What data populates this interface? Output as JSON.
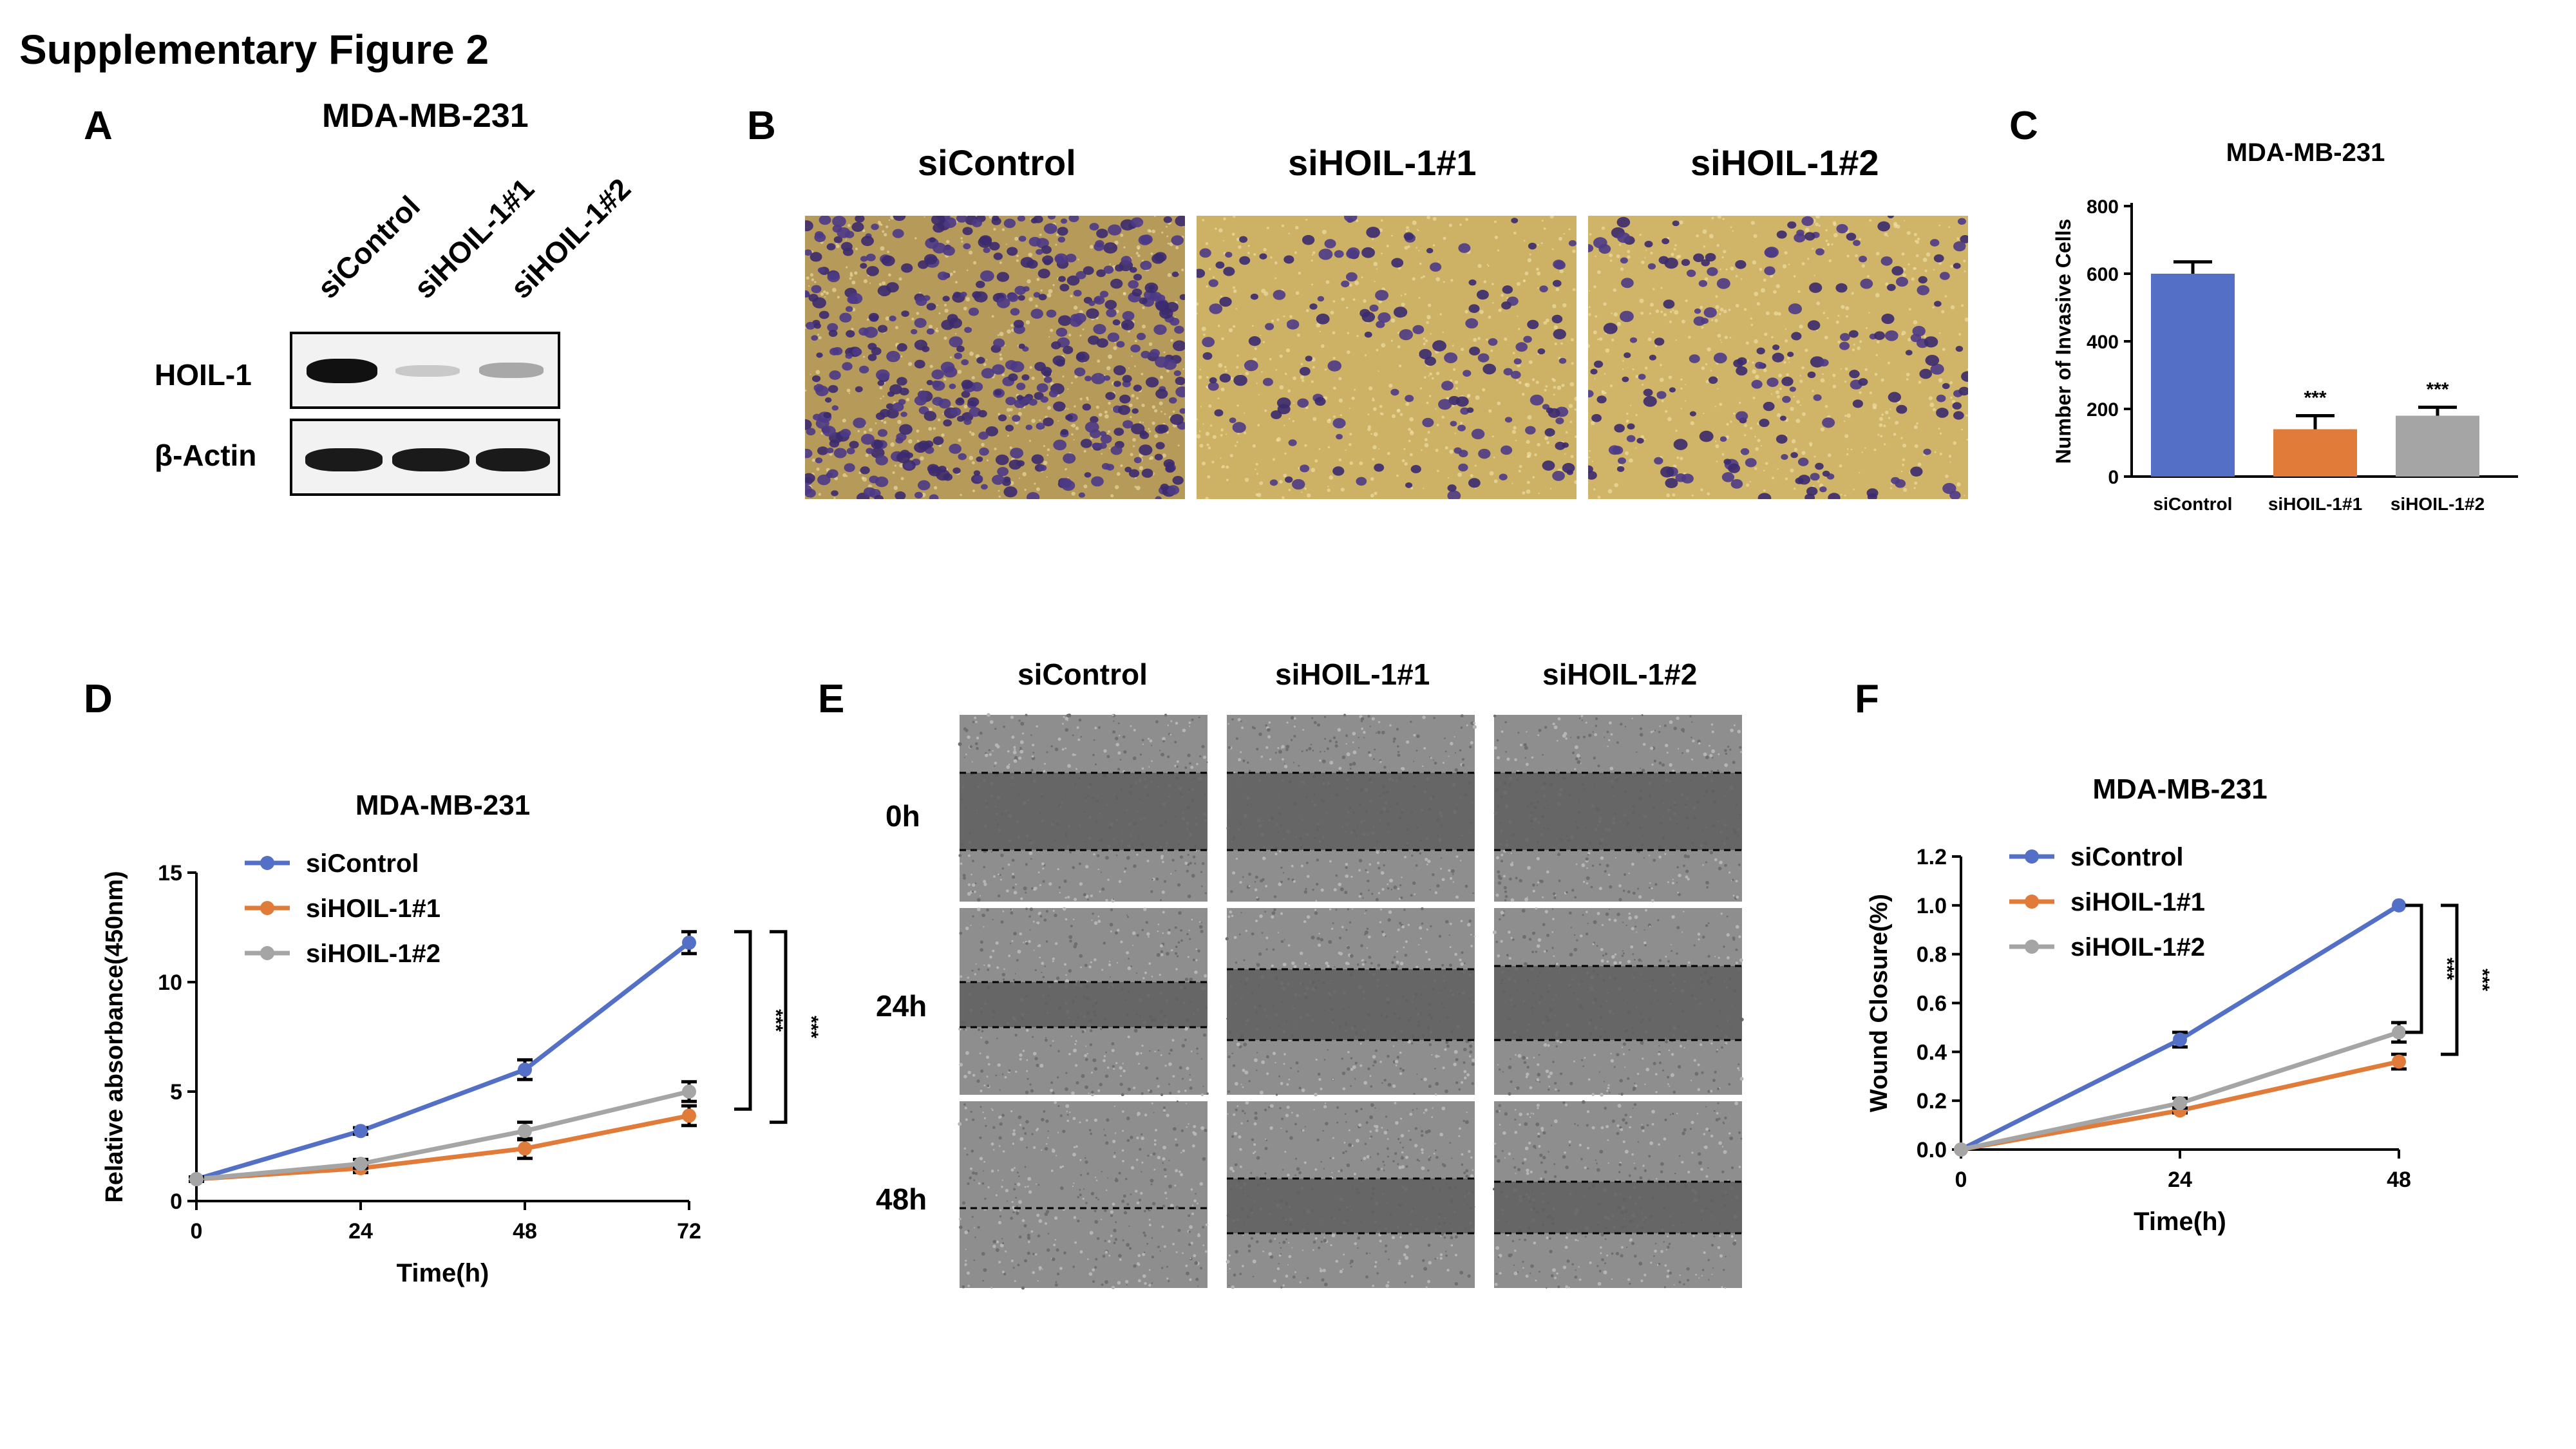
{
  "figure_title": "Supplementary Figure 2",
  "panels": {
    "A": {
      "letter": "A",
      "cell_line": "MDA-MB-231",
      "lanes": [
        "siControl",
        "siHOIL-1#1",
        "siHOIL-1#2"
      ],
      "rows": [
        "HOIL-1",
        "β-Actin"
      ]
    },
    "B": {
      "letter": "B",
      "columns": [
        "siControl",
        "siHOIL-1#1",
        "siHOIL-1#2"
      ]
    },
    "C": {
      "letter": "C"
    },
    "D": {
      "letter": "D"
    },
    "E": {
      "letter": "E",
      "columns": [
        "siControl",
        "siHOIL-1#1",
        "siHOIL-1#2"
      ],
      "rows": [
        "0h",
        "24h",
        "48h"
      ]
    },
    "F": {
      "letter": "F"
    }
  },
  "chart_data": [
    {
      "id": "C",
      "type": "bar",
      "title": "MDA-MB-231",
      "ylabel": "Number of Invasive Cells",
      "xlabel": "",
      "categories": [
        "siControl",
        "siHOIL-1#1",
        "siHOIL-1#2"
      ],
      "values": [
        600,
        140,
        180
      ],
      "errors": [
        35,
        40,
        25
      ],
      "colors": [
        "#5470c6",
        "#e07b39",
        "#a5a5a5"
      ],
      "significance": [
        "",
        "***",
        "***"
      ],
      "ylim": [
        0,
        800
      ],
      "yticks": [
        "0",
        "200",
        "400",
        "600",
        "800"
      ]
    },
    {
      "id": "D",
      "type": "line",
      "title": "MDA-MB-231",
      "xlabel": "Time(h)",
      "ylabel": "Relative absorbance(450nm)",
      "x": [
        0,
        24,
        48,
        72
      ],
      "xticks": [
        "0",
        "24",
        "48",
        "72"
      ],
      "ylim": [
        0,
        15
      ],
      "yticks": [
        "0",
        "5",
        "10",
        "15"
      ],
      "legend_position": "top-left",
      "series": [
        {
          "name": "siControl",
          "color": "#5470c6",
          "values": [
            1.0,
            3.2,
            6.0,
            11.8
          ],
          "errors": [
            0.1,
            0.15,
            0.45,
            0.5
          ]
        },
        {
          "name": "siHOIL-1#1",
          "color": "#e07b39",
          "values": [
            1.0,
            1.5,
            2.4,
            3.9
          ],
          "errors": [
            0.1,
            0.2,
            0.45,
            0.45
          ]
        },
        {
          "name": "siHOIL-1#2",
          "color": "#a5a5a5",
          "values": [
            1.0,
            1.7,
            3.2,
            5.0
          ],
          "errors": [
            0.1,
            0.2,
            0.4,
            0.45
          ]
        }
      ],
      "significance": [
        "***",
        "***"
      ]
    },
    {
      "id": "F",
      "type": "line",
      "title": "MDA-MB-231",
      "xlabel": "Time(h)",
      "ylabel": "Wound Closure(%)",
      "x": [
        0,
        24,
        48
      ],
      "xticks": [
        "0",
        "24",
        "48"
      ],
      "ylim": [
        0,
        1.2
      ],
      "yticks": [
        "0.0",
        "0.2",
        "0.4",
        "0.6",
        "0.8",
        "1.0",
        "1.2"
      ],
      "legend_position": "top-left",
      "series": [
        {
          "name": "siControl",
          "color": "#5470c6",
          "values": [
            0.0,
            0.45,
            1.0
          ],
          "errors": [
            0.0,
            0.03,
            0.0
          ]
        },
        {
          "name": "siHOIL-1#1",
          "color": "#e07b39",
          "values": [
            0.0,
            0.16,
            0.36
          ],
          "errors": [
            0.0,
            0.01,
            0.03
          ]
        },
        {
          "name": "siHOIL-1#2",
          "color": "#a5a5a5",
          "values": [
            0.0,
            0.19,
            0.48
          ],
          "errors": [
            0.0,
            0.02,
            0.04
          ]
        }
      ],
      "significance": [
        "***",
        "***"
      ]
    }
  ]
}
